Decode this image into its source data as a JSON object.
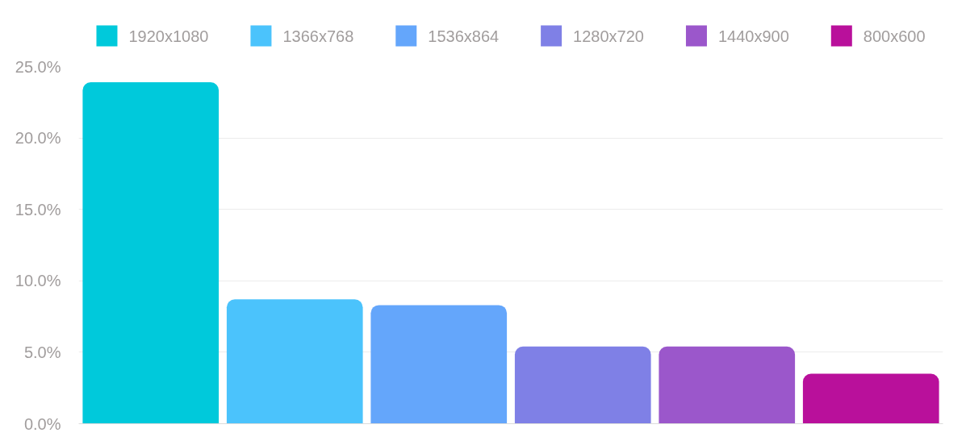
{
  "chart_data": {
    "type": "bar",
    "categories": [
      null
    ],
    "series": [
      {
        "name": "1920x1080",
        "color": "#00c9db",
        "values": [
          23.9
        ]
      },
      {
        "name": "1366x768",
        "color": "#4bc3fc",
        "values": [
          8.7
        ]
      },
      {
        "name": "1536x864",
        "color": "#64a6fb",
        "values": [
          8.3
        ]
      },
      {
        "name": "1280x720",
        "color": "#7f80e6",
        "values": [
          5.4
        ]
      },
      {
        "name": "1440x900",
        "color": "#9b57cb",
        "values": [
          5.4
        ]
      },
      {
        "name": "800x600",
        "color": "#b9109b",
        "values": [
          3.5
        ]
      }
    ],
    "ylim": [
      0,
      25
    ],
    "yticks": [
      {
        "value": 0,
        "label": "0.0%"
      },
      {
        "value": 5,
        "label": "5.0%"
      },
      {
        "value": 10,
        "label": "10.0%"
      },
      {
        "value": 15,
        "label": "15.0%"
      },
      {
        "value": 20,
        "label": "20.0%"
      },
      {
        "value": 25,
        "label": "25.0%"
      }
    ],
    "grid": "y",
    "legend": "top"
  }
}
